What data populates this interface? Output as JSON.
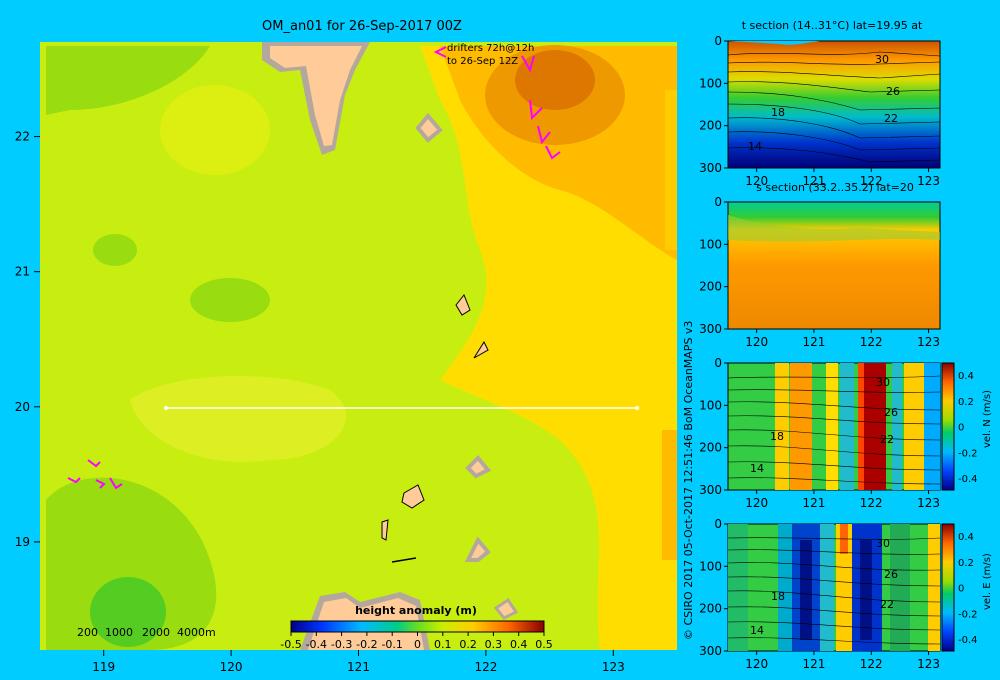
{
  "chart_data": [
    {
      "type": "heatmap",
      "title": "OM_an01 for 26-Sep-2017 00Z",
      "x_ticks": [
        119,
        120,
        121,
        122,
        123
      ],
      "y_ticks": [
        22,
        21,
        20,
        19
      ],
      "xlim": [
        118.5,
        123.5
      ],
      "ylim": [
        18.2,
        22.7
      ],
      "annotation": [
        "drifters 72h@12h",
        "to 26-Sep 12Z"
      ],
      "depth_legend": [
        "200",
        "1000",
        "2000",
        "4000m"
      ],
      "colorbar": {
        "label": "height anomaly (m)",
        "ticks": [
          "-0.5",
          "-0.4",
          "-0.3",
          "-0.2",
          "-0.1",
          "0",
          "0.1",
          "0.2",
          "0.3",
          "0.4",
          "0.5"
        ],
        "range": [
          -0.5,
          0.5
        ]
      },
      "section_line": {
        "lat": 20,
        "lon": [
          119.5,
          123.2
        ]
      }
    },
    {
      "type": "heatmap",
      "title": "t section (14..31°C) lat=19.95 at",
      "x_ticks": [
        120,
        121,
        122,
        123
      ],
      "y_ticks": [
        0,
        100,
        200,
        300
      ],
      "contour_labels": [
        "30",
        "26",
        "22",
        "18",
        "14"
      ]
    },
    {
      "type": "heatmap",
      "title": "s section (33.2..35.2) lat=20",
      "x_ticks": [
        120,
        121,
        122,
        123
      ],
      "y_ticks": [
        0,
        100,
        200,
        300
      ]
    },
    {
      "type": "heatmap",
      "title": "",
      "x_ticks": [
        120,
        121,
        122,
        123
      ],
      "y_ticks": [
        0,
        100,
        200,
        300
      ],
      "contour_labels": [
        "30",
        "26",
        "22",
        "18",
        "14"
      ],
      "colorbar": {
        "label": "vel. N  (m/s)",
        "ticks": [
          "0.4",
          "0.2",
          "0",
          "-0.2",
          "-0.4"
        ]
      }
    },
    {
      "type": "heatmap",
      "title": "",
      "x_ticks": [
        120,
        121,
        122,
        123
      ],
      "y_ticks": [
        0,
        100,
        200,
        300
      ],
      "contour_labels": [
        "30",
        "26",
        "22",
        "18",
        "14"
      ],
      "colorbar": {
        "label": "vel. E  (m/s)",
        "ticks": [
          "0.4",
          "0.2",
          "0",
          "-0.2",
          "-0.4"
        ]
      }
    }
  ],
  "credit": "© CSIRO 2017   05-Oct-2017 12:51:46 BoM OceanMAPS v3",
  "colors": {
    "background": "#00ccff",
    "land": "#ffcc99",
    "frame": "#b4a89c",
    "drifter": "#ff00ff"
  }
}
